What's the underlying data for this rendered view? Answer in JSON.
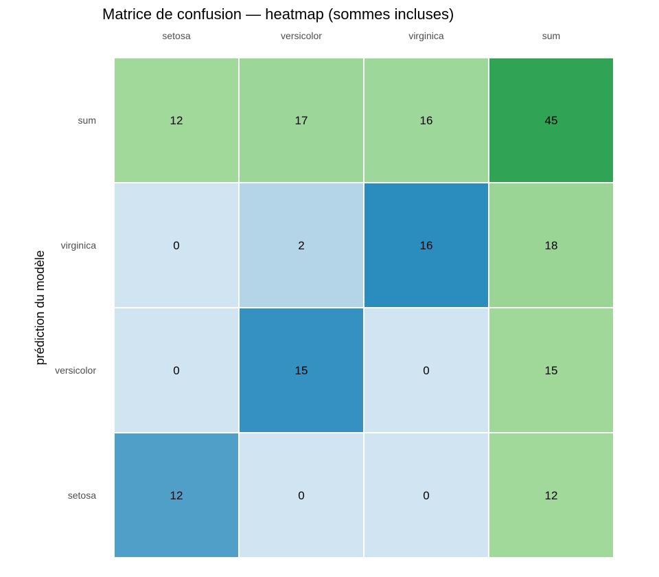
{
  "chart_data": {
    "type": "heatmap",
    "title": "Matrice de confusion — heatmap (sommes incluses)",
    "xlabel": "",
    "ylabel": "prédiction du modèle",
    "x_categories": [
      "setosa",
      "versicolor",
      "virginica",
      "sum"
    ],
    "y_categories": [
      "sum",
      "virginica",
      "versicolor",
      "setosa"
    ],
    "values": [
      [
        12,
        17,
        16,
        45
      ],
      [
        0,
        2,
        16,
        18
      ],
      [
        0,
        15,
        0,
        15
      ],
      [
        12,
        0,
        0,
        12
      ]
    ],
    "x_ticks_position": "top",
    "grid": false,
    "legend": "none",
    "colors": {
      "cell_blue_low": "#d0e4f1",
      "cell_blue_high": "#2b8cbe",
      "cell_green_low": "#a1d99b",
      "cell_green_high": "#31a354",
      "cell_border": "#ffffff"
    }
  }
}
